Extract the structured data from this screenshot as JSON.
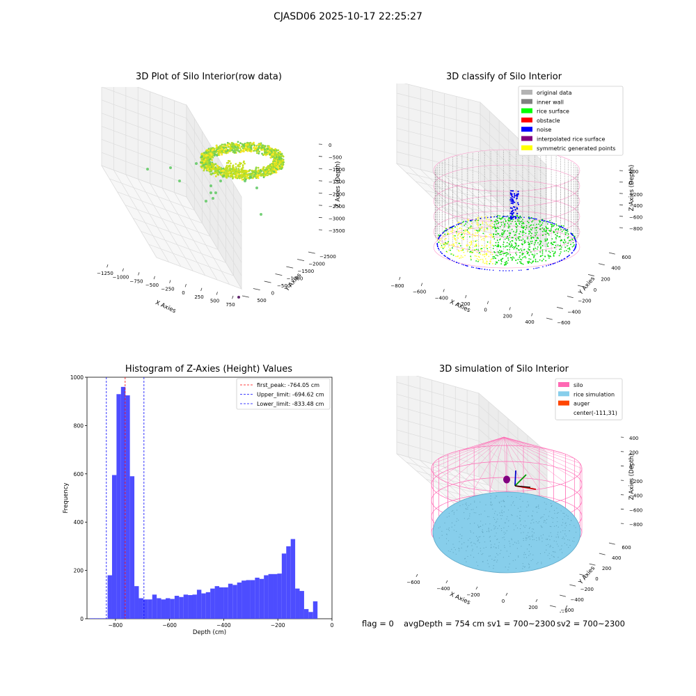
{
  "suptitle": "CJASD06 2025-10-17 22:25:27",
  "status": {
    "flag": "flag = 0",
    "avg_depth": "avgDepth = 754 cm",
    "sv1": "sv1 = 700~2300",
    "sv2": "sv2 = 700~2300"
  },
  "chart_data": [
    {
      "type": "scatter",
      "title": "3D Plot of Silo Interior(row data)",
      "xlabel": "X Axies",
      "ylabel": "Y Axies",
      "zlabel": "Z Axies (Depth)",
      "x_ticks": [
        "−1250",
        "−1000",
        "−750",
        "−500",
        "−250",
        "0",
        "250",
        "500",
        "750"
      ],
      "y_ticks": [
        "500",
        "0",
        "−500",
        "−1000",
        "−1500",
        "−2000",
        "−2500"
      ],
      "z_ticks": [
        "0",
        "−500",
        "−1000",
        "−1500",
        "−2000",
        "−2500",
        "−3000",
        "−3500"
      ],
      "colormap": "viridis",
      "description_points": "dense ring of rice-surface points near Z ≈ 0 to −500 with sparse outliers"
    },
    {
      "type": "scatter",
      "title": "3D classify of Silo Interior",
      "xlabel": "X Axies",
      "ylabel": "Y Axies",
      "zlabel": "Z Axies (Depth)",
      "x_ticks": [
        "−800",
        "−600",
        "−400",
        "−200",
        "0",
        "200",
        "400"
      ],
      "y_ticks": [
        "600",
        "400",
        "200",
        "0",
        "−200",
        "−400",
        "−600"
      ],
      "z_ticks": [
        "200",
        "0",
        "−200",
        "−400",
        "−600",
        "−800"
      ],
      "legend_position": "top-right",
      "legend": [
        {
          "label": "original data",
          "color": "#b3b3b3"
        },
        {
          "label": "inner wall",
          "color": "#808080"
        },
        {
          "label": "rice surface",
          "color": "#00ff00"
        },
        {
          "label": "obstacle",
          "color": "#ff0000"
        },
        {
          "label": "noise",
          "color": "#0000ff"
        },
        {
          "label": "interpolated rice surface",
          "color": "#800080"
        },
        {
          "label": "symmetric generated points",
          "color": "#ffff00"
        }
      ]
    },
    {
      "type": "bar",
      "title": "Histogram of Z-Axies (Height) Values",
      "xlabel": "Depth (cm)",
      "ylabel": "Frequency",
      "xlim": [
        -905,
        0
      ],
      "ylim": [
        0,
        1000
      ],
      "x_ticks": [
        "−800",
        "−600",
        "−400",
        "−200",
        "0"
      ],
      "y_ticks": [
        "0",
        "200",
        "400",
        "600",
        "800",
        "1000"
      ],
      "bar_color": "#4d4dff",
      "bin_start": -895,
      "bin_width": 16.5,
      "values": [
        2,
        2,
        2,
        2,
        180,
        595,
        930,
        960,
        925,
        590,
        135,
        85,
        80,
        80,
        100,
        85,
        80,
        85,
        82,
        95,
        90,
        100,
        98,
        100,
        120,
        105,
        110,
        125,
        135,
        130,
        130,
        145,
        140,
        150,
        158,
        160,
        160,
        170,
        165,
        180,
        185,
        185,
        187,
        270,
        300,
        330,
        125,
        115,
        40,
        28,
        72
      ],
      "legend_position": "top-right",
      "lines": [
        {
          "label": "first_peak: -764.05 cm",
          "x": -764.05,
          "color": "#ff0000"
        },
        {
          "label": "Upper_limit: -694.62 cm",
          "x": -694.62,
          "color": "#0000ff"
        },
        {
          "label": "Lower_limit: -833.48 cm",
          "x": -833.48,
          "color": "#0000ff"
        }
      ]
    },
    {
      "type": "scatter",
      "title": "3D simulation of Silo Interior",
      "xlabel": "X Axies",
      "ylabel": "Y Axies",
      "zlabel": "Z Axies (Depth)",
      "x_ticks": [
        "−600",
        "−400",
        "−200",
        "0",
        "200",
        "400"
      ],
      "y_ticks": [
        "600",
        "400",
        "200",
        "0",
        "−200",
        "−400",
        "−600"
      ],
      "z_ticks": [
        "400",
        "200",
        "0",
        "−200",
        "−400",
        "−600",
        "−800"
      ],
      "legend_position": "top-right",
      "legend": [
        {
          "label": "silo",
          "color": "#ff69b4"
        },
        {
          "label": "rice simulation",
          "color": "#87ceeb"
        },
        {
          "label": "auger",
          "color": "#ff4500"
        },
        {
          "label": "center(-111,31)",
          "color": ""
        }
      ]
    }
  ]
}
